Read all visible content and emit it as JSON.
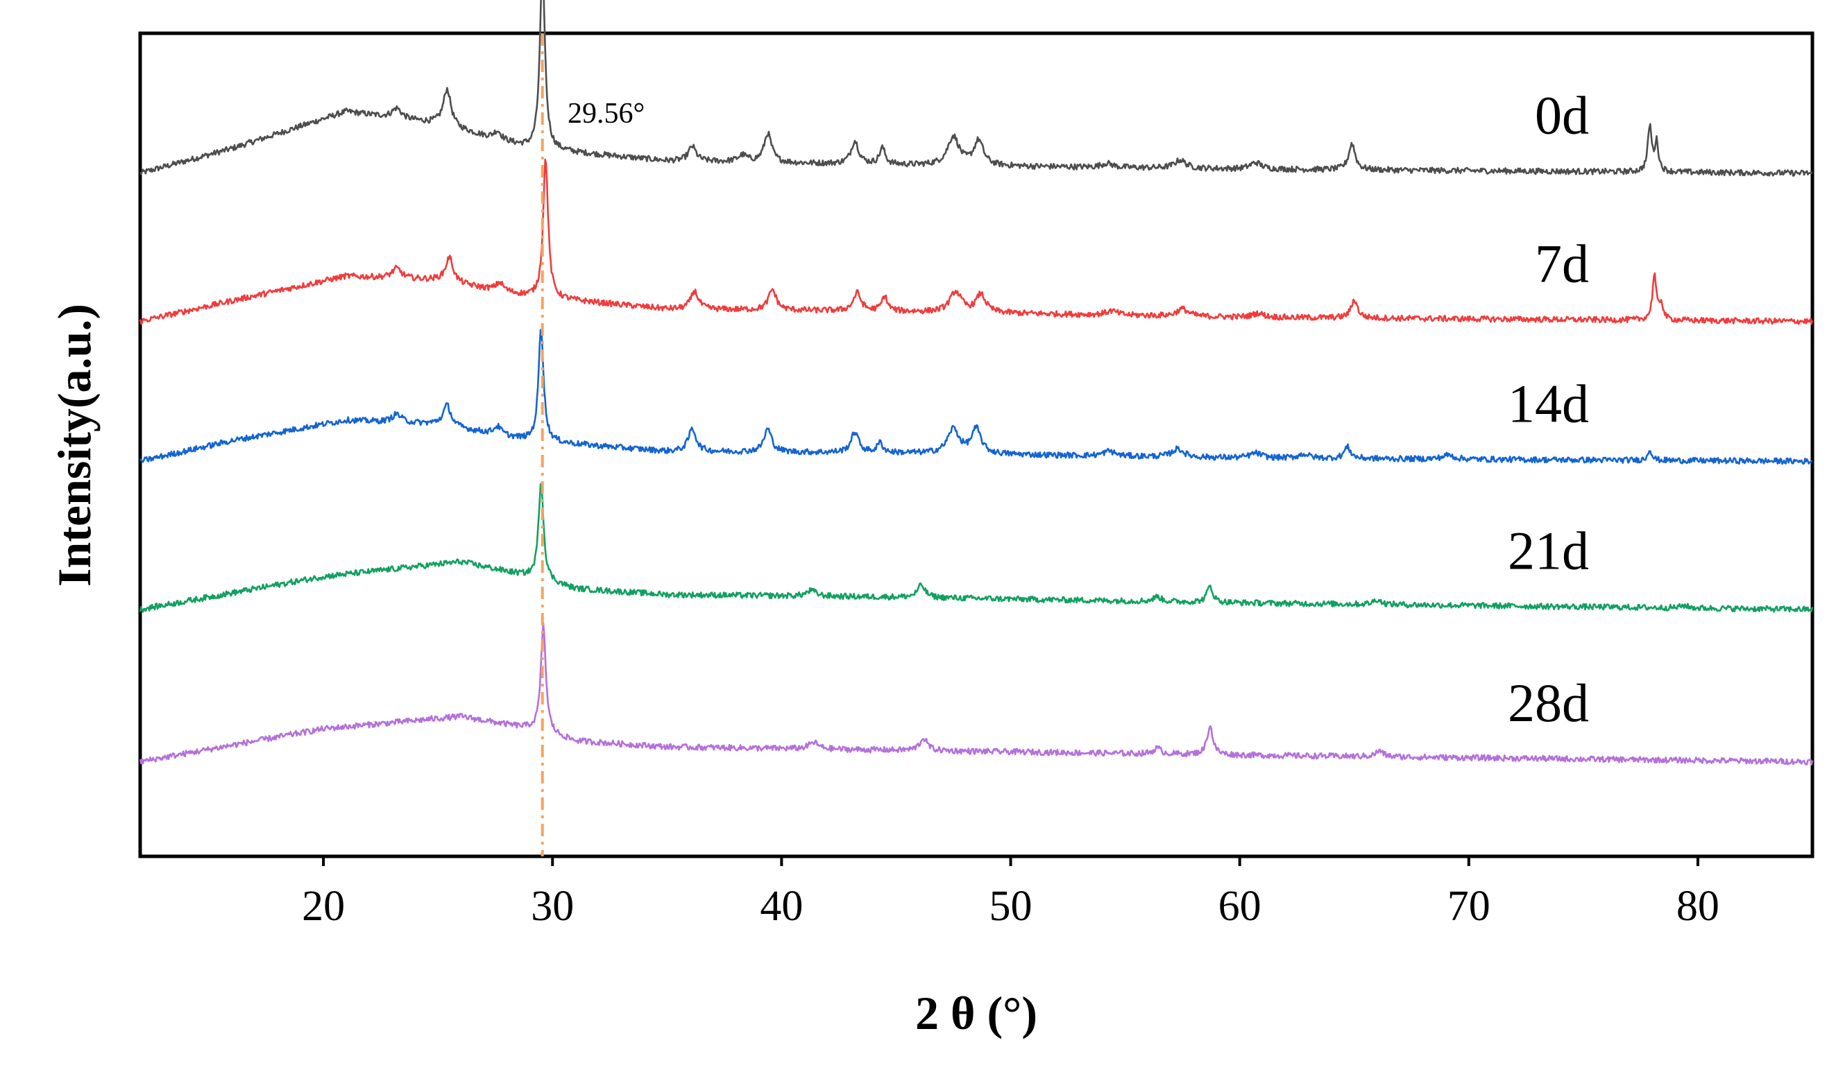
{
  "chart_data": {
    "type": "line",
    "title": "",
    "xlabel": "2 θ (°)",
    "ylabel": "Intensity(a.u.)",
    "xlim": [
      12,
      85
    ],
    "xticks": [
      20,
      30,
      40,
      50,
      60,
      70,
      80
    ],
    "reference_line": {
      "x": 29.56,
      "label": "29.56°",
      "color": "#f4a460"
    },
    "series": [
      {
        "name": "0d",
        "color": "#4d4d4d",
        "offset": 0.83,
        "baseline": [
          [
            12,
            0.0
          ],
          [
            16,
            0.03
          ],
          [
            21,
            0.075
          ],
          [
            25,
            0.06
          ],
          [
            29,
            0.03
          ],
          [
            35,
            0.015
          ],
          [
            45,
            0.01
          ],
          [
            60,
            0.005
          ],
          [
            85,
            0.0
          ]
        ],
        "peaks": [
          [
            23.2,
            0.012,
            0.25
          ],
          [
            25.4,
            0.045,
            0.2
          ],
          [
            27.6,
            0.01,
            0.2
          ],
          [
            29.56,
            0.225,
            0.13
          ],
          [
            36.1,
            0.018,
            0.2
          ],
          [
            38.3,
            0.008,
            0.25
          ],
          [
            39.4,
            0.035,
            0.2
          ],
          [
            43.2,
            0.028,
            0.2
          ],
          [
            44.4,
            0.02,
            0.15
          ],
          [
            47.5,
            0.035,
            0.3
          ],
          [
            48.6,
            0.03,
            0.25
          ],
          [
            54.2,
            0.005,
            0.3
          ],
          [
            57.4,
            0.01,
            0.3
          ],
          [
            60.7,
            0.008,
            0.3
          ],
          [
            64.9,
            0.032,
            0.17
          ],
          [
            77.9,
            0.055,
            0.1
          ],
          [
            78.2,
            0.035,
            0.1
          ]
        ]
      },
      {
        "name": "7d",
        "color": "#f03c3c",
        "offset": 0.65,
        "baseline": [
          [
            12,
            0.0
          ],
          [
            16,
            0.025
          ],
          [
            21,
            0.055
          ],
          [
            25,
            0.05
          ],
          [
            29,
            0.03
          ],
          [
            35,
            0.015
          ],
          [
            45,
            0.012
          ],
          [
            60,
            0.005
          ],
          [
            85,
            0.0
          ]
        ],
        "peaks": [
          [
            23.2,
            0.012,
            0.25
          ],
          [
            25.5,
            0.03,
            0.2
          ],
          [
            27.7,
            0.01,
            0.2
          ],
          [
            29.7,
            0.17,
            0.13
          ],
          [
            36.2,
            0.022,
            0.2
          ],
          [
            39.6,
            0.025,
            0.2
          ],
          [
            43.3,
            0.022,
            0.2
          ],
          [
            44.5,
            0.018,
            0.15
          ],
          [
            47.6,
            0.025,
            0.3
          ],
          [
            48.7,
            0.022,
            0.25
          ],
          [
            54.4,
            0.005,
            0.3
          ],
          [
            57.5,
            0.009,
            0.3
          ],
          [
            60.8,
            0.005,
            0.3
          ],
          [
            65.0,
            0.022,
            0.17
          ],
          [
            78.1,
            0.055,
            0.1
          ],
          [
            78.4,
            0.02,
            0.1
          ]
        ]
      },
      {
        "name": "14d",
        "color": "#1464d2",
        "offset": 0.48,
        "baseline": [
          [
            12,
            0.0
          ],
          [
            16,
            0.025
          ],
          [
            21,
            0.05
          ],
          [
            25,
            0.045
          ],
          [
            29,
            0.025
          ],
          [
            35,
            0.012
          ],
          [
            45,
            0.01
          ],
          [
            60,
            0.004
          ],
          [
            85,
            0.0
          ]
        ],
        "peaks": [
          [
            23.2,
            0.01,
            0.25
          ],
          [
            25.4,
            0.025,
            0.2
          ],
          [
            27.6,
            0.01,
            0.2
          ],
          [
            29.5,
            0.14,
            0.13
          ],
          [
            36.1,
            0.028,
            0.2
          ],
          [
            39.4,
            0.028,
            0.2
          ],
          [
            43.2,
            0.025,
            0.2
          ],
          [
            44.3,
            0.012,
            0.15
          ],
          [
            47.5,
            0.03,
            0.3
          ],
          [
            48.5,
            0.03,
            0.25
          ],
          [
            54.3,
            0.006,
            0.3
          ],
          [
            57.3,
            0.01,
            0.3
          ],
          [
            60.7,
            0.006,
            0.3
          ],
          [
            62.8,
            0.005,
            0.3
          ],
          [
            64.7,
            0.014,
            0.17
          ],
          [
            69.1,
            0.005,
            0.3
          ],
          [
            77.9,
            0.014,
            0.1
          ]
        ]
      },
      {
        "name": "21d",
        "color": "#12a060",
        "offset": 0.3,
        "baseline": [
          [
            12,
            0.0
          ],
          [
            16,
            0.02
          ],
          [
            20,
            0.04
          ],
          [
            26,
            0.058
          ],
          [
            29,
            0.04
          ],
          [
            31,
            0.025
          ],
          [
            35,
            0.018
          ],
          [
            45,
            0.015
          ],
          [
            60,
            0.008
          ],
          [
            85,
            0.0
          ]
        ],
        "peaks": [
          [
            29.5,
            0.12,
            0.13
          ],
          [
            41.3,
            0.007,
            0.25
          ],
          [
            46.1,
            0.015,
            0.2
          ],
          [
            56.4,
            0.006,
            0.2
          ],
          [
            58.7,
            0.02,
            0.15
          ],
          [
            66.0,
            0.006,
            0.2
          ],
          [
            79.4,
            0.003,
            0.2
          ]
        ]
      },
      {
        "name": "28d",
        "color": "#b470dc",
        "offset": 0.115,
        "baseline": [
          [
            12,
            0.0
          ],
          [
            16,
            0.02
          ],
          [
            20,
            0.04
          ],
          [
            26,
            0.055
          ],
          [
            29,
            0.04
          ],
          [
            31,
            0.025
          ],
          [
            35,
            0.018
          ],
          [
            45,
            0.014
          ],
          [
            60,
            0.008
          ],
          [
            85,
            0.0
          ]
        ],
        "peaks": [
          [
            29.6,
            0.13,
            0.13
          ],
          [
            41.4,
            0.008,
            0.25
          ],
          [
            46.2,
            0.015,
            0.2
          ],
          [
            56.4,
            0.007,
            0.2
          ],
          [
            58.7,
            0.035,
            0.15
          ],
          [
            66.1,
            0.007,
            0.2
          ]
        ]
      }
    ]
  }
}
